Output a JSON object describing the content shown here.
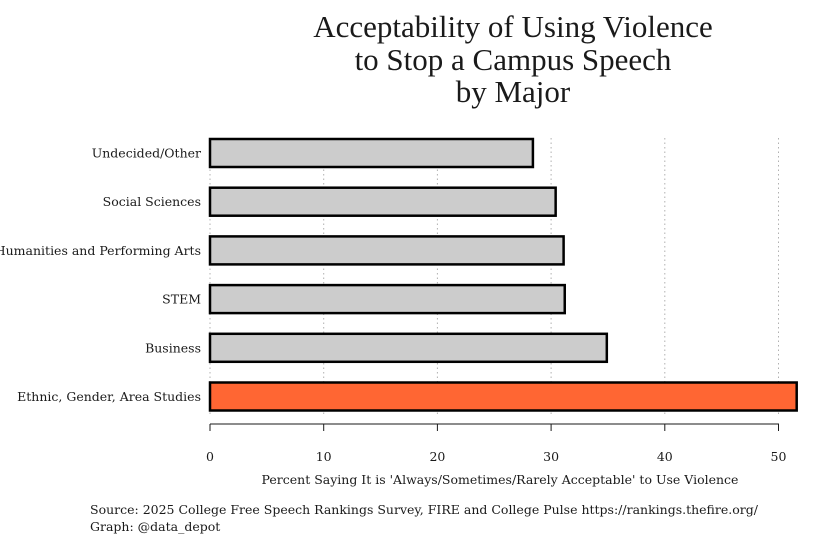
{
  "chart_data": {
    "type": "bar",
    "orientation": "horizontal",
    "title_lines": [
      "Acceptability of Using Violence",
      "to Stop a Campus Speech",
      "by Major"
    ],
    "categories": [
      "Undecided/Other",
      "Social Sciences",
      "Humanities and Performing Arts",
      "STEM",
      "Business",
      "Ethnic, Gender, Area Studies"
    ],
    "values": [
      28.4,
      30.4,
      31.1,
      31.2,
      34.9,
      51.6
    ],
    "highlight": "Ethnic, Gender, Area Studies",
    "colors": {
      "bar": "#cccccc",
      "highlight": "#ff6633",
      "outline": "#000000",
      "grid": "#b0b0b0"
    },
    "xlabel": "Percent Saying It is 'Always/Sometimes/Rarely Acceptable' to Use Violence",
    "ylabel": "",
    "xlim": [
      0,
      52
    ],
    "xticks": [
      0,
      10,
      20,
      30,
      40,
      50
    ],
    "grid": "vertical dotted"
  },
  "caption": {
    "source": "Source: 2025 College Free Speech Rankings Survey, FIRE and College Pulse https://rankings.thefire.org/",
    "credit": "Graph: @data_depot"
  }
}
